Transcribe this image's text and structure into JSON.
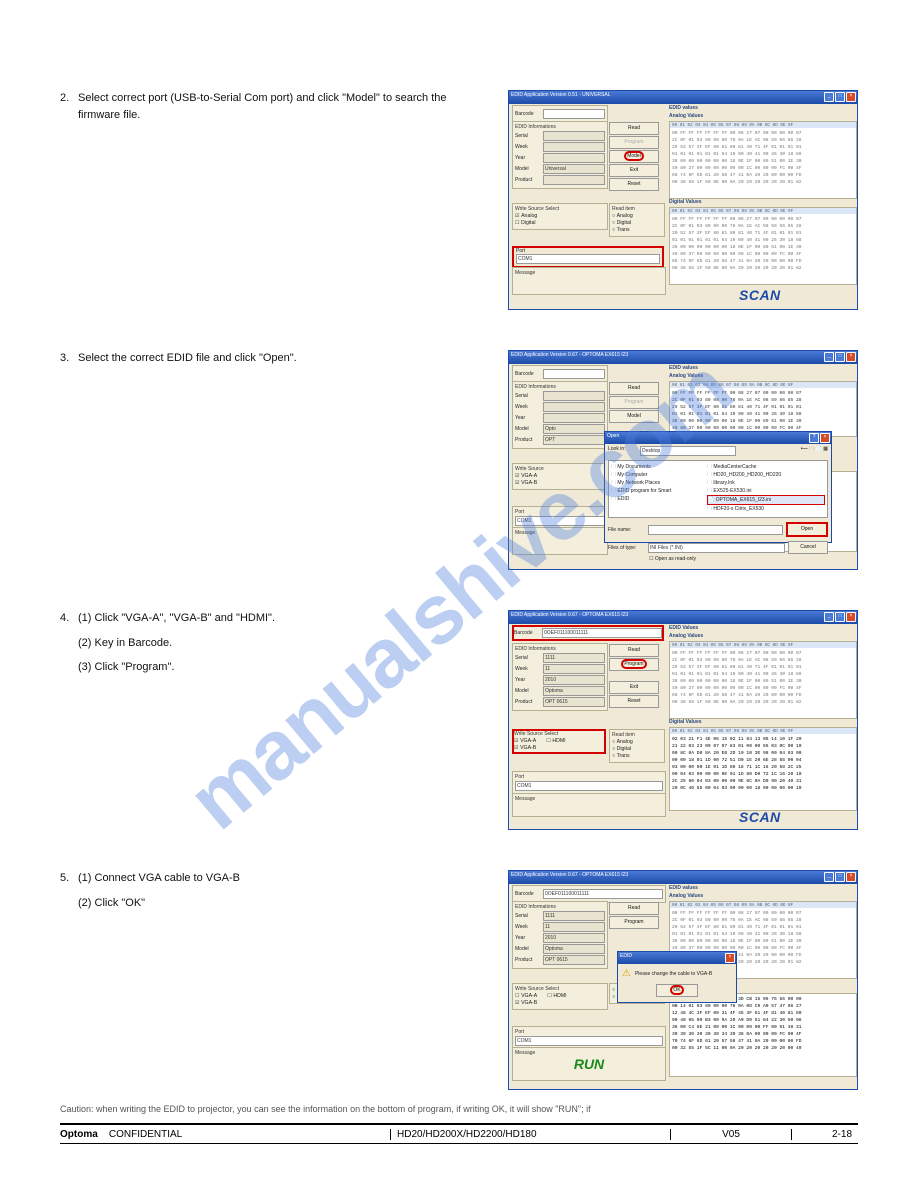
{
  "watermark": "manualshive.com",
  "steps": {
    "s2": {
      "num": "2.",
      "text": "Select correct port (USB-to-Serial Com port) and click \"Model\" to search the firmware file."
    },
    "s3": {
      "num": "3.",
      "text": "Select the correct EDID file and click \"Open\"."
    },
    "s4": {
      "num": "4.",
      "lines": [
        "Click \"VGA-A\", \"VGA-B\" and \"HDMI\".",
        "Key in Barcode.",
        "Click \"Program\"."
      ]
    },
    "s5": {
      "num": "5.",
      "lines": [
        "Connect VGA cable to VGA-B",
        "Click \"OK\""
      ]
    }
  },
  "caution": "Caution: when writing the EDID to projector, you can see the information on the bottom of program, if writing OK, it will show \"RUN\"; if",
  "app": {
    "title1": "EDID Application Version 0.51 - UNIVERSAL",
    "title2": "EDID Application Version 0.67 - OPTOMA EX615 I23",
    "title3": "EDID Application Version 0.67 - OPTOMA EX615 I23",
    "title4": "EDID Application Version 0.67 - OPTOMA EX615 I23",
    "labels": {
      "barcode": "Barcode",
      "edid_info": "EDID Informations",
      "serial": "Serial",
      "week": "Week",
      "year": "Year",
      "model": "Model",
      "product": "Product",
      "wss": "Write Source Select",
      "analog": "Analog",
      "digital": "Digital",
      "vgaa": "VGA-A",
      "vgab": "VGA-B",
      "hdmi": "HDMI",
      "port": "Port",
      "com1": "COM1",
      "message": "Message",
      "edid_values": "EDID values",
      "analog_values": "Analog Values",
      "digital_values": "Digital Values",
      "read_item": "Read item",
      "trans": "Trans"
    },
    "buttons": {
      "read": "Read",
      "program": "Program",
      "model": "Model",
      "exit": "Exit",
      "reset": "Reset",
      "open": "Open",
      "cancel": "Cancel",
      "ok": "OK"
    },
    "values": {
      "universal": "Universal",
      "barcode": "0OEF011100011111",
      "serial": "1111",
      "week": "11",
      "year": "2010",
      "model2": "Optoma",
      "product2": "OPT 0615"
    },
    "opendlg": {
      "title": "Open",
      "lookin": "Look in:",
      "filename": "File name:",
      "filesoftype": "Files of type:",
      "filter": "INI Files (*.INI)",
      "readonly": "Open as read-only",
      "desktop": "Desktop",
      "items_left": [
        "My Documents",
        "My Computer",
        "My Network Places",
        "EDID program for Smart",
        "EDID"
      ],
      "items_right": [
        "MediaCenterCache",
        "HD20_HD200_HD200_HD220",
        "library.Ink",
        "EX525-EX530.ini",
        "OPTOMA_EX615_I23.ini",
        "HDF20-x Citrix_EX530"
      ]
    },
    "msgdlg": {
      "title": "EDID",
      "text": "Please change the cable to VGA-B"
    },
    "hex_grey": "00 FF FF FF FF FF FF 00 08 27 07 00 00 00 00 07\n2C 0F 01 03 80 00 00 78 0A 1E AC 98 59 56 85 28\n29 52 57 3F EF 80 81 80 81 40 71 4F 01 01 01 01\n01 01 01 01 01 01 64 19 00 40 41 00 26 30 18 88\n36 00 00 00 00 00 00 18 0E 1F 00 80 51 00 1E 30\n40 80 37 00 00 00 00 00 00 1C 00 00 00 FC 00 4F\n66 74 6F 6D 61 20 58 47 41 0A 20 20 00 00 00 FD\n00 38 55 1F 50 0E 00 0A 20 20 20 20 20 20 01 82",
    "hex_black": "00 FF FF FF FF FF FF 00 3D CB 15 06 76 56 00 00\n0B 14 01 03 80 00 00 78 0A 0D C9 A0 57 47 98 27\n12 48 4C 3F EF 00 31 4F 45 4F 61 4F 81 40 81 80\n90 40 95 00 B3 00 9A 29 A0 D0 51 84 22 30 50 98\n36 00 C4 8E 21 00 00 1C 00 00 00 FF 00 51 38 31\n30 30 30 30 30 30 34 39 38 0A 00 00 00 FC 00 4F\n70 74 6F 6D 61 20 57 58 47 41 0A 20 00 00 00 FD\n00 32 55 1F 5C 11 00 0A 20 20 20 20 20 20 00 49",
    "hex_black2": "02 03 21 F1 4E 06 15 02 11 84 13 05 14 10 1F 20\n21 22 03 23 09 07 07 83 01 00 00 65 03 0C 00 10\n00 8C 0A D0 8A 20 E0 2D 10 10 3E 96 00 04 03 00\n00 00 18 01 1D 00 72 51 D0 1E 20 6E 28 55 00 04\n03 00 00 00 1E 01 1D 80 18 71 1C 16 20 58 2C 25\n00 04 03 00 00 00 9E 01 1D 80 D0 72 1C 16 20 10\n2C 25 80 04 03 00 00 00 9E 8C 0A D0 90 20 40 31\n20 0C 40 55 00 04 03 00 00 00 18 00 00 00 00 10"
  },
  "footer": {
    "brand": "Optoma",
    "conf": "CONFIDENTIAL",
    "project": "HD20/HD200X/HD2200/HD180",
    "rev": "V05",
    "page": "2-18"
  }
}
